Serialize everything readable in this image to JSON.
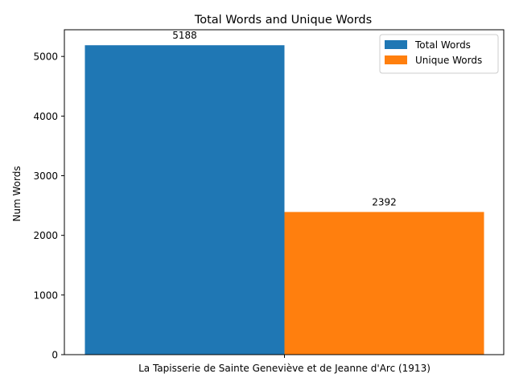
{
  "chart_data": {
    "type": "bar",
    "title": "Total Words and Unique Words",
    "xlabel": "",
    "ylabel": "Num Words",
    "categories": [
      "La Tapisserie de Sainte Geneviève et de Jeanne d'Arc (1913)"
    ],
    "series": [
      {
        "name": "Total Words",
        "values": [
          5188
        ],
        "color": "#1f77b4"
      },
      {
        "name": "Unique Words",
        "values": [
          2392
        ],
        "color": "#ff7f0e"
      }
    ],
    "ylim": [
      0,
      5447.4
    ],
    "yticks": [
      0,
      1000,
      2000,
      3000,
      4000,
      5000
    ],
    "grid": false,
    "legend_position": "top-right"
  }
}
